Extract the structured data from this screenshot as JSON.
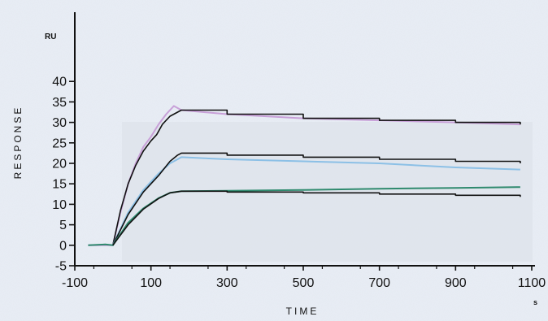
{
  "chart_data": {
    "type": "line",
    "xlabel": "TIME",
    "xunit": "s",
    "ylabel": "RESPONSE",
    "yunit": "RU",
    "xlim": [
      -100,
      1100
    ],
    "ylim": [
      -5,
      45
    ],
    "xticks": [
      -100,
      100,
      300,
      500,
      700,
      900,
      1100
    ],
    "yticks": [
      -5,
      0,
      5,
      10,
      15,
      20,
      25,
      30,
      35,
      40
    ],
    "grid": false,
    "legend": "none",
    "series": [
      {
        "color": "#c8a0d8",
        "role": "measured",
        "x": [
          -65,
          -20,
          0,
          20,
          40,
          60,
          80,
          100,
          120,
          140,
          160,
          180,
          300,
          500,
          700,
          900,
          1070
        ],
        "y": [
          0,
          0,
          0,
          8,
          15,
          20,
          24,
          26.5,
          29.5,
          32,
          34,
          33,
          32,
          31,
          30.5,
          30,
          29.5
        ]
      },
      {
        "color": "#111111",
        "role": "fit",
        "x": [
          0,
          20,
          40,
          60,
          80,
          100,
          115,
          130,
          150,
          180,
          300,
          500,
          700,
          900,
          1070
        ],
        "y": [
          0,
          8.5,
          15,
          19.5,
          23,
          25.5,
          27,
          29.5,
          31.5,
          33,
          32,
          31,
          30.5,
          30,
          29.5
        ]
      },
      {
        "color": "#8cc0e6",
        "role": "measured",
        "x": [
          0,
          40,
          80,
          120,
          150,
          170,
          180,
          300,
          500,
          700,
          900,
          1070
        ],
        "y": [
          0,
          8,
          13.5,
          17.5,
          20,
          21,
          21.5,
          21,
          20.5,
          20,
          19,
          18.5
        ]
      },
      {
        "color": "#111111",
        "role": "fit",
        "x": [
          0,
          40,
          80,
          120,
          150,
          170,
          180,
          300,
          500,
          700,
          900,
          1070
        ],
        "y": [
          0,
          7.5,
          13,
          17,
          20.5,
          22,
          22.5,
          22,
          21.5,
          21,
          20.5,
          20
        ]
      },
      {
        "color": "#2f8a6e",
        "role": "measured",
        "x": [
          -65,
          -20,
          0,
          40,
          80,
          120,
          150,
          180,
          300,
          500,
          700,
          900,
          1070
        ],
        "y": [
          0,
          0.2,
          0,
          5.5,
          9,
          11.5,
          12.8,
          13.2,
          13.3,
          13.5,
          13.8,
          14,
          14.2
        ]
      },
      {
        "color": "#111111",
        "role": "fit",
        "x": [
          0,
          40,
          80,
          120,
          150,
          180,
          300,
          500,
          700,
          900,
          1070
        ],
        "y": [
          0,
          5,
          8.8,
          11.4,
          12.8,
          13.2,
          13,
          12.8,
          12.5,
          12.2,
          11.8
        ]
      }
    ]
  }
}
